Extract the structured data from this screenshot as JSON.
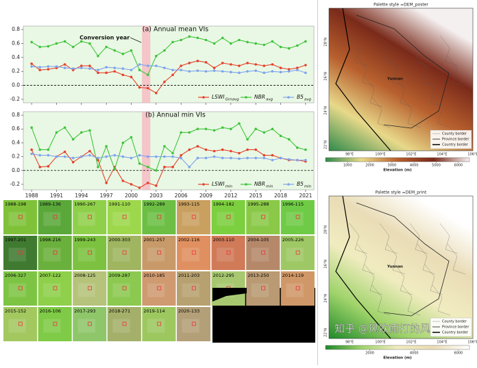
{
  "chart_data": [
    {
      "type": "line",
      "title": "(a) Annual mean VIs",
      "annotation": "Conversion year",
      "shade_x": [
        2001.3,
        2002.3
      ],
      "x": [
        1988,
        1989,
        1990,
        1991,
        1992,
        1993,
        1994,
        1995,
        1996,
        1997,
        1998,
        1999,
        2000,
        2001,
        2002,
        2003,
        2004,
        2005,
        2006,
        2007,
        2008,
        2009,
        2010,
        2011,
        2012,
        2013,
        2014,
        2015,
        2016,
        2017,
        2018,
        2019,
        2020,
        2021
      ],
      "xlim": [
        1987,
        2022
      ],
      "xticks": [
        1988,
        1991,
        1994,
        1997,
        2000,
        2003,
        2006,
        2009,
        2012,
        2015,
        2018,
        2021
      ],
      "xtick_labels": false,
      "ylim": [
        -0.25,
        0.85
      ],
      "yticks": [
        -0.2,
        0.0,
        0.2,
        0.4,
        0.6,
        0.8
      ],
      "zero_line": true,
      "series": [
        {
          "name": "LSWI",
          "subscript": "Grnavg",
          "color": "#e5412d",
          "values": [
            0.31,
            0.22,
            0.23,
            0.25,
            0.3,
            0.22,
            0.28,
            0.28,
            0.18,
            0.18,
            0.2,
            0.15,
            0.12,
            -0.03,
            -0.04,
            -0.11,
            0.05,
            0.15,
            0.28,
            0.32,
            0.35,
            0.33,
            0.25,
            0.32,
            0.3,
            0.28,
            0.32,
            0.3,
            0.28,
            0.3,
            0.25,
            0.23,
            0.25,
            0.29
          ]
        },
        {
          "name": "NBR",
          "subscript": "avg",
          "color": "#3fc43c",
          "values": [
            0.62,
            0.55,
            0.56,
            0.6,
            0.63,
            0.55,
            0.63,
            0.6,
            0.42,
            0.55,
            0.5,
            0.45,
            0.5,
            0.22,
            0.15,
            0.42,
            0.5,
            0.62,
            0.65,
            0.7,
            0.68,
            0.65,
            0.6,
            0.68,
            0.6,
            0.65,
            0.62,
            0.6,
            0.58,
            0.63,
            0.55,
            0.53,
            0.57,
            0.63
          ]
        },
        {
          "name": "B5",
          "subscript": "avg",
          "color": "#7ea3ee",
          "values": [
            0.27,
            0.26,
            0.27,
            0.27,
            0.25,
            0.24,
            0.25,
            0.24,
            0.22,
            0.26,
            0.25,
            0.24,
            0.22,
            0.3,
            0.28,
            0.28,
            0.25,
            0.22,
            0.22,
            0.2,
            0.21,
            0.2,
            0.21,
            0.2,
            0.19,
            0.18,
            0.2,
            0.21,
            0.18,
            0.2,
            0.19,
            0.2,
            0.22,
            0.18
          ]
        }
      ]
    },
    {
      "type": "line",
      "title": "(b) Annual min VIs",
      "shade_x": [
        2001.3,
        2002.3
      ],
      "x": [
        1988,
        1989,
        1990,
        1991,
        1992,
        1993,
        1994,
        1995,
        1996,
        1997,
        1998,
        1999,
        2000,
        2001,
        2002,
        2003,
        2004,
        2005,
        2006,
        2007,
        2008,
        2009,
        2010,
        2011,
        2012,
        2013,
        2014,
        2015,
        2016,
        2017,
        2018,
        2019,
        2020,
        2021
      ],
      "xlim": [
        1987,
        2022
      ],
      "xticks": [
        1988,
        1991,
        1994,
        1997,
        2000,
        2003,
        2006,
        2009,
        2012,
        2015,
        2018,
        2021
      ],
      "xtick_labels": true,
      "ylim": [
        -0.28,
        0.85
      ],
      "yticks": [
        -0.2,
        0.0,
        0.2,
        0.4,
        0.6,
        0.8
      ],
      "zero_line": true,
      "series": [
        {
          "name": "LSWI",
          "subscript": "min",
          "color": "#e5412d",
          "values": [
            0.3,
            0.05,
            0.06,
            0.2,
            0.27,
            0.12,
            0.2,
            0.28,
            0.15,
            -0.18,
            0.05,
            -0.15,
            -0.2,
            -0.25,
            -0.18,
            -0.22,
            0.05,
            0.05,
            0.22,
            0.3,
            0.35,
            0.3,
            0.28,
            0.3,
            0.28,
            0.25,
            0.3,
            0.3,
            0.22,
            0.22,
            0.18,
            0.15,
            0.15,
            0.13
          ]
        },
        {
          "name": "NBR",
          "subscript": "min",
          "color": "#3fc43c",
          "values": [
            0.62,
            0.3,
            0.3,
            0.55,
            0.62,
            0.45,
            0.55,
            0.58,
            0.05,
            0.35,
            0.02,
            0.4,
            0.48,
            0.1,
            0.05,
            0.0,
            0.35,
            0.25,
            0.55,
            0.55,
            0.6,
            0.6,
            0.58,
            0.62,
            0.6,
            0.68,
            0.45,
            0.6,
            0.55,
            0.6,
            0.5,
            0.45,
            0.33,
            0.3
          ]
        },
        {
          "name": "B5",
          "subscript": "min",
          "color": "#7ea3ee",
          "values": [
            0.24,
            0.22,
            0.22,
            0.2,
            0.2,
            0.18,
            0.2,
            0.22,
            0.18,
            0.2,
            0.22,
            0.2,
            0.18,
            0.22,
            0.2,
            0.2,
            0.2,
            0.2,
            0.18,
            0.05,
            0.18,
            0.18,
            0.2,
            0.18,
            0.18,
            0.17,
            0.18,
            0.18,
            0.18,
            0.15,
            0.18,
            0.16,
            0.15,
            0.15
          ]
        }
      ]
    }
  ],
  "thumbnails": [
    "1988-198",
    "1989-136",
    "1990-267",
    "1991-110",
    "1992-289",
    "1993-115",
    "1994-182",
    "1995-288",
    "1996-115",
    "1997-201",
    "1998-216",
    "1999-243",
    "2000-303",
    "2001-257",
    "2002-116",
    "2003-110",
    "2004-105",
    "2005-226",
    "2006-327",
    "2007-122",
    "2008-125",
    "2009-287",
    "2010-185",
    "2011-203",
    "2012-295",
    "2013-250",
    "2014-119",
    "2015-152",
    "2016-106",
    "2017-293",
    "2018-271",
    "2019-114",
    "2020-133"
  ],
  "maps": [
    {
      "title": "Palette style =DEM_poster",
      "place": "Yunnan",
      "lat_labels": [
        "28°N",
        "26°N",
        "24°N",
        "22°N"
      ],
      "lon_labels": [
        "98°E",
        "100°E",
        "102°E",
        "104°E",
        "106°E"
      ],
      "legend": [
        "County border",
        "Province border",
        "Country border"
      ],
      "colorbar_lim": [
        0,
        6500
      ],
      "colorbar_ticks": [
        1000,
        2000,
        3000,
        4000,
        5000,
        6000
      ],
      "colorbar_label": "Elevation (m)",
      "colors": [
        "#2f8a4a",
        "#e8d98a",
        "#b8602e",
        "#7a2a1a",
        "#f5f0f0"
      ]
    },
    {
      "title": "Palette style =DEM_print",
      "place": "Yunnan",
      "lat_labels": [
        "28°N",
        "26°N",
        "24°N",
        "22°N"
      ],
      "lon_labels": [
        "98°E",
        "100°E",
        "102°E",
        "104°E",
        "106°E"
      ],
      "legend": [
        "County border",
        "Province border",
        "Country border"
      ],
      "colorbar_lim": [
        0,
        6500
      ],
      "colorbar_ticks": [
        2000,
        4000,
        6000
      ],
      "colorbar_label": "Elevation (m)",
      "colors": [
        "#1f8a2a",
        "#9fd36a",
        "#f1ecc0",
        "#e9dcb6",
        "#ffffff"
      ]
    }
  ],
  "watermark": "知乎 @风吹雨打的风"
}
